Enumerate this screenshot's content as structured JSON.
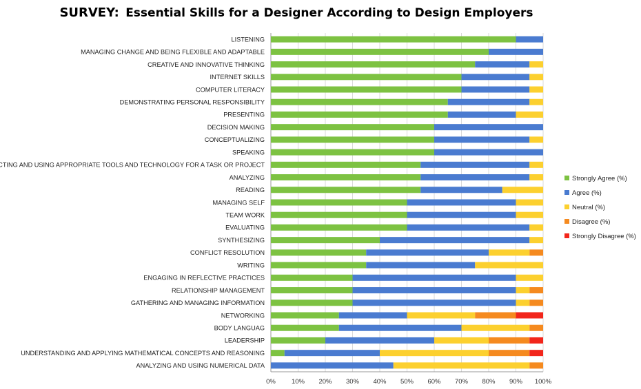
{
  "chart_data": {
    "type": "bar",
    "orientation": "horizontal-stacked-100",
    "title_prefix": "SURVEY:",
    "title": "Essential Skills for a Designer According to Design Employers",
    "xlim": [
      0,
      100
    ],
    "x_ticks": [
      "0%",
      "10%",
      "20%",
      "30%",
      "40%",
      "50%",
      "60%",
      "70%",
      "80%",
      "90%",
      "100%"
    ],
    "grid": true,
    "legend_position": "right",
    "categories": [
      "LISTENING",
      "MANAGING CHANGE AND BEING FLEXIBLE AND ADAPTABLE",
      "CREATIVE AND INNOVATIVE THINKING",
      "INTERNET SKILLS",
      "COMPUTER LITERACY",
      "DEMONSTRATING PERSONAL RESPONSIBILITY",
      "PRESENTING",
      "DECISION MAKING",
      "CONCEPTUALIZING",
      "SPEAKING",
      "SELECTING AND USING APPROPRIATE TOOLS AND TECHNOLOGY FOR A TASK OR PROJECT",
      "ANALYZING",
      "READING",
      "MANAGING SELF",
      "TEAM WORK",
      "EVALUATING",
      "SYNTHESIZING",
      "CONFLICT RESOLUTION",
      "WRITING",
      "ENGAGING IN REFLECTIVE PRACTICES",
      "RELATIONSHIP MANAGEMENT",
      "GATHERING AND MANAGING INFORMATION",
      "NETWORKING",
      "BODY LANGUAG",
      "LEADERSHIP",
      "UNDERSTANDING AND APPLYING MATHEMATICAL CONCEPTS AND REASONING",
      "ANALYZING AND USING NUMERICAL DATA"
    ],
    "series": [
      {
        "name": "Strongly Agree (%)",
        "color": "#7dc242",
        "values": [
          90,
          80,
          75,
          70,
          70,
          65,
          65,
          60,
          60,
          60,
          55,
          55,
          55,
          50,
          50,
          50,
          40,
          35,
          35,
          30,
          30,
          30,
          25,
          25,
          20,
          5,
          0
        ]
      },
      {
        "name": "Agree (%)",
        "color": "#4a7bd0",
        "values": [
          10,
          20,
          20,
          25,
          25,
          30,
          25,
          40,
          35,
          40,
          40,
          40,
          30,
          40,
          40,
          45,
          55,
          45,
          40,
          60,
          60,
          60,
          25,
          45,
          40,
          35,
          45
        ]
      },
      {
        "name": "Neutral (%)",
        "color": "#fcd02f",
        "values": [
          0,
          0,
          5,
          5,
          5,
          5,
          10,
          0,
          5,
          0,
          5,
          5,
          15,
          10,
          10,
          5,
          5,
          15,
          25,
          10,
          5,
          5,
          25,
          25,
          20,
          40,
          50
        ]
      },
      {
        "name": "Disagree (%)",
        "color": "#f58a1f",
        "values": [
          0,
          0,
          0,
          0,
          0,
          0,
          0,
          0,
          0,
          0,
          0,
          0,
          0,
          0,
          0,
          0,
          0,
          5,
          0,
          0,
          5,
          5,
          15,
          5,
          15,
          15,
          5
        ]
      },
      {
        "name": "Strongly Disagree (%)",
        "color": "#f2261b",
        "values": [
          0,
          0,
          0,
          0,
          0,
          0,
          0,
          0,
          0,
          0,
          0,
          0,
          0,
          0,
          0,
          0,
          0,
          0,
          0,
          0,
          0,
          0,
          10,
          0,
          5,
          5,
          0
        ]
      }
    ]
  }
}
